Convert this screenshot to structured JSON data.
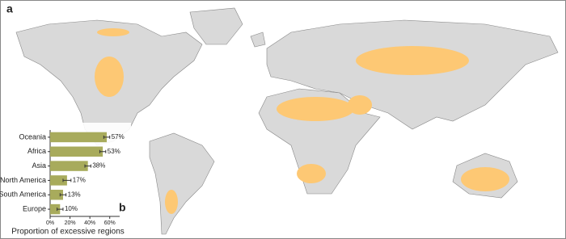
{
  "panel_label": "a",
  "chart_data": {
    "type": "barh",
    "panel_label": "b",
    "categories": [
      "Oceania",
      "Africa",
      "Asia",
      "North America",
      "South America",
      "Europe"
    ],
    "values": [
      57,
      53,
      38,
      17,
      13,
      10
    ],
    "errors": [
      3,
      3,
      3,
      4,
      3,
      3
    ],
    "value_labels": [
      "57%",
      "53%",
      "38%",
      "17%",
      "13%",
      "10%"
    ],
    "color": "#a8ab5c",
    "xlim": [
      0,
      70
    ],
    "xticks": [
      {
        "value": 0,
        "label": "0%"
      },
      {
        "value": 20,
        "label": "20%"
      },
      {
        "value": 40,
        "label": "40%"
      },
      {
        "value": 60,
        "label": "60%"
      }
    ],
    "xlabel": "Proportion of excessive regions"
  }
}
